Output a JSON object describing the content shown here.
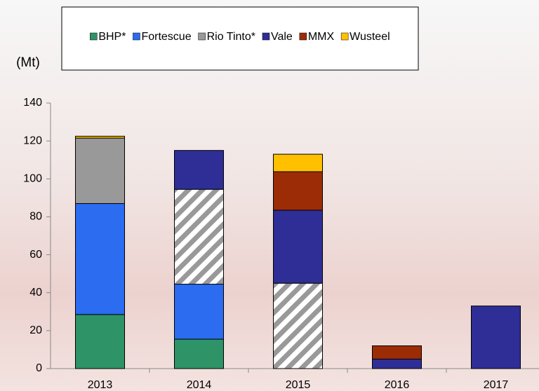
{
  "chart_data": {
    "type": "stacked_bar",
    "y_unit": "(Mt)",
    "categories": [
      "2013",
      "2014",
      "2015",
      "2016",
      "2017"
    ],
    "series": [
      {
        "name": "BHP*",
        "color": "#2e9467",
        "values": [
          28.5,
          15.5,
          null,
          null,
          null
        ]
      },
      {
        "name": "Fortescue",
        "color": "#2b6cf0",
        "values": [
          58.5,
          29,
          null,
          null,
          null
        ]
      },
      {
        "name": "Rio Tinto*",
        "color": "#999999",
        "values": [
          34.5,
          50,
          45,
          null,
          null
        ],
        "hatched": [
          false,
          true,
          true,
          false,
          false
        ]
      },
      {
        "name": "Vale",
        "color": "#2e2e96",
        "values": [
          null,
          20.5,
          38.5,
          5,
          33
        ]
      },
      {
        "name": "MMX",
        "color": "#9c2c06",
        "values": [
          null,
          null,
          20.3,
          7,
          null
        ]
      },
      {
        "name": "Wusteel",
        "color": "#ffc000",
        "values": [
          1,
          null,
          9.2,
          null,
          null
        ]
      }
    ],
    "ylim": [
      0,
      140
    ],
    "yticks": [
      0,
      20,
      40,
      60,
      80,
      100,
      120,
      140
    ],
    "grid": false
  }
}
